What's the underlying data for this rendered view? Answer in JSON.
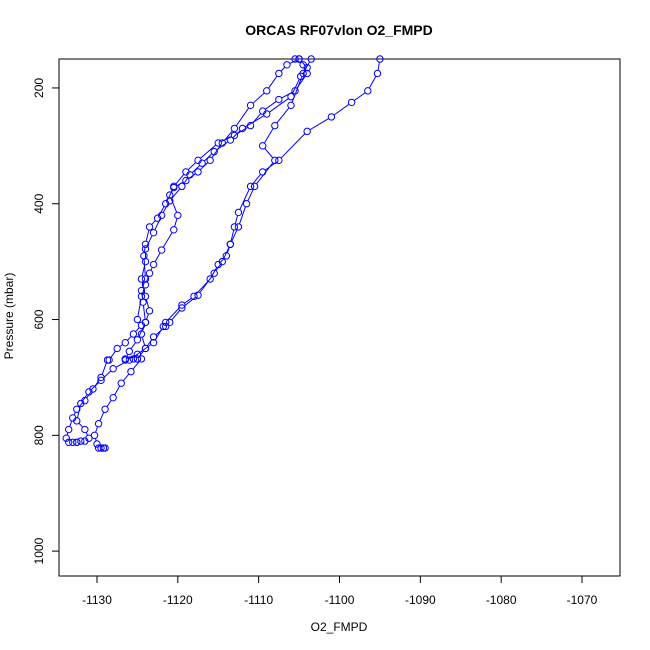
{
  "chart_data": {
    "type": "line",
    "title": "ORCAS RF07vlon O2_FMPD",
    "xlabel": "O2_FMPD",
    "ylabel": "Pressure (mbar)",
    "xlim": [
      -1134.7,
      -1065.3
    ],
    "ylim": [
      1043,
      150
    ],
    "y_inverted": true,
    "x_ticks": [
      -1130,
      -1120,
      -1110,
      -1100,
      -1090,
      -1080,
      -1070
    ],
    "y_ticks": [
      200,
      400,
      600,
      800,
      1000
    ],
    "grid": false,
    "legend": "none",
    "series_color": "#0000ff",
    "marker": "open-circle",
    "series": [
      {
        "points": [
          [
            -1105.0,
            150
          ],
          [
            -1106.5,
            160
          ],
          [
            -1107.5,
            175
          ],
          [
            -1109.0,
            205
          ],
          [
            -1111.0,
            230
          ],
          [
            -1113.0,
            270
          ],
          [
            -1114.5,
            295
          ],
          [
            -1116.0,
            325
          ],
          [
            -1117.5,
            345
          ],
          [
            -1119.0,
            360
          ],
          [
            -1120.5,
            372
          ],
          [
            -1121.5,
            400
          ],
          [
            -1122.5,
            425
          ],
          [
            -1123.5,
            440
          ],
          [
            -1124.0,
            470
          ],
          [
            -1124.2,
            490
          ],
          [
            -1124.0,
            530
          ],
          [
            -1124.5,
            550
          ],
          [
            -1124.3,
            570
          ],
          [
            -1124.0,
            605
          ],
          [
            -1125.0,
            635
          ],
          [
            -1126.0,
            655
          ],
          [
            -1126.5,
            668
          ],
          [
            -1125.5,
            668
          ],
          [
            -1125.0,
            668
          ],
          [
            -1124.5,
            668
          ],
          [
            -1125.8,
            690
          ],
          [
            -1127.0,
            710
          ],
          [
            -1128.0,
            735
          ],
          [
            -1129.0,
            755
          ],
          [
            -1129.8,
            780
          ],
          [
            -1130.3,
            800
          ],
          [
            -1130.0,
            815
          ],
          [
            -1129.8,
            822
          ],
          [
            -1129.5,
            822
          ],
          [
            -1129.2,
            822
          ],
          [
            -1129.0,
            822
          ]
        ]
      },
      {
        "points": [
          [
            -1105.5,
            150
          ],
          [
            -1104.5,
            160
          ],
          [
            -1104.0,
            175
          ],
          [
            -1105.5,
            205
          ],
          [
            -1107.5,
            220
          ],
          [
            -1109.5,
            240
          ],
          [
            -1111.0,
            265
          ],
          [
            -1113.0,
            282
          ],
          [
            -1115.0,
            295
          ],
          [
            -1117.5,
            325
          ],
          [
            -1119.0,
            345
          ],
          [
            -1120.5,
            370
          ],
          [
            -1121.0,
            385
          ],
          [
            -1120.0,
            420
          ],
          [
            -1120.5,
            445
          ],
          [
            -1122.0,
            480
          ],
          [
            -1123.0,
            505
          ],
          [
            -1123.5,
            520
          ],
          [
            -1124.0,
            540
          ],
          [
            -1124.5,
            560
          ],
          [
            -1125.0,
            600
          ],
          [
            -1124.5,
            610
          ],
          [
            -1125.5,
            625
          ],
          [
            -1126.5,
            640
          ],
          [
            -1127.5,
            650
          ],
          [
            -1128.5,
            670
          ],
          [
            -1128.7,
            670
          ],
          [
            -1129.5,
            700
          ],
          [
            -1130.5,
            720
          ],
          [
            -1131.5,
            740
          ],
          [
            -1132.5,
            755
          ],
          [
            -1133.0,
            770
          ],
          [
            -1133.5,
            790
          ],
          [
            -1133.8,
            805
          ],
          [
            -1133.5,
            812
          ],
          [
            -1133.0,
            812
          ],
          [
            -1132.5,
            812
          ]
        ]
      },
      {
        "points": [
          [
            -1105.0,
            150
          ],
          [
            -1104.0,
            165
          ],
          [
            -1104.8,
            180
          ],
          [
            -1106.0,
            215
          ],
          [
            -1109.0,
            245
          ],
          [
            -1112.0,
            270
          ],
          [
            -1113.5,
            290
          ],
          [
            -1115.5,
            310
          ],
          [
            -1117.0,
            330
          ],
          [
            -1118.5,
            350
          ],
          [
            -1119.5,
            370
          ],
          [
            -1121.0,
            395
          ],
          [
            -1122.0,
            420
          ],
          [
            -1123.0,
            450
          ],
          [
            -1124.0,
            478
          ],
          [
            -1124.0,
            500
          ],
          [
            -1124.5,
            530
          ],
          [
            -1124.0,
            560
          ],
          [
            -1123.5,
            585
          ],
          [
            -1124.0,
            605
          ],
          [
            -1124.5,
            625
          ],
          [
            -1124.0,
            650
          ],
          [
            -1126.0,
            670
          ],
          [
            -1128.0,
            685
          ],
          [
            -1129.5,
            705
          ],
          [
            -1131.0,
            725
          ],
          [
            -1132.0,
            745
          ],
          [
            -1132.5,
            775
          ],
          [
            -1131.5,
            790
          ],
          [
            -1131.0,
            805
          ],
          [
            -1131.5,
            810
          ],
          [
            -1132.0,
            810
          ],
          [
            -1132.5,
            812
          ]
        ]
      },
      {
        "points": [
          [
            -1095.0,
            150
          ],
          [
            -1095.3,
            175
          ],
          [
            -1096.5,
            205
          ],
          [
            -1098.5,
            225
          ],
          [
            -1101.0,
            250
          ],
          [
            -1104.0,
            275
          ],
          [
            -1107.5,
            325
          ],
          [
            -1109.5,
            345
          ],
          [
            -1111.0,
            370
          ],
          [
            -1112.5,
            415
          ],
          [
            -1113.0,
            440
          ],
          [
            -1113.5,
            470
          ],
          [
            -1114.0,
            490
          ],
          [
            -1115.0,
            505
          ],
          [
            -1116.0,
            530
          ],
          [
            -1118.0,
            560
          ],
          [
            -1119.5,
            575
          ],
          [
            -1121.5,
            605
          ],
          [
            -1121.8,
            612
          ],
          [
            -1123.0,
            640
          ],
          [
            -1125.0,
            660
          ],
          [
            -1126.5,
            670
          ]
        ]
      },
      {
        "points": [
          [
            -1103.5,
            150
          ],
          [
            -1104.5,
            175
          ],
          [
            -1106.0,
            230
          ],
          [
            -1108.0,
            265
          ],
          [
            -1109.5,
            300
          ],
          [
            -1108.0,
            325
          ],
          [
            -1110.5,
            370
          ],
          [
            -1111.5,
            400
          ],
          [
            -1112.5,
            440
          ],
          [
            -1113.5,
            470
          ],
          [
            -1114.5,
            500
          ],
          [
            -1115.5,
            520
          ],
          [
            -1117.5,
            558
          ],
          [
            -1119.5,
            580
          ],
          [
            -1121.0,
            605
          ],
          [
            -1121.5,
            612
          ],
          [
            -1123.0,
            630
          ],
          [
            -1124.0,
            650
          ],
          [
            -1125.0,
            668
          ]
        ]
      }
    ]
  }
}
